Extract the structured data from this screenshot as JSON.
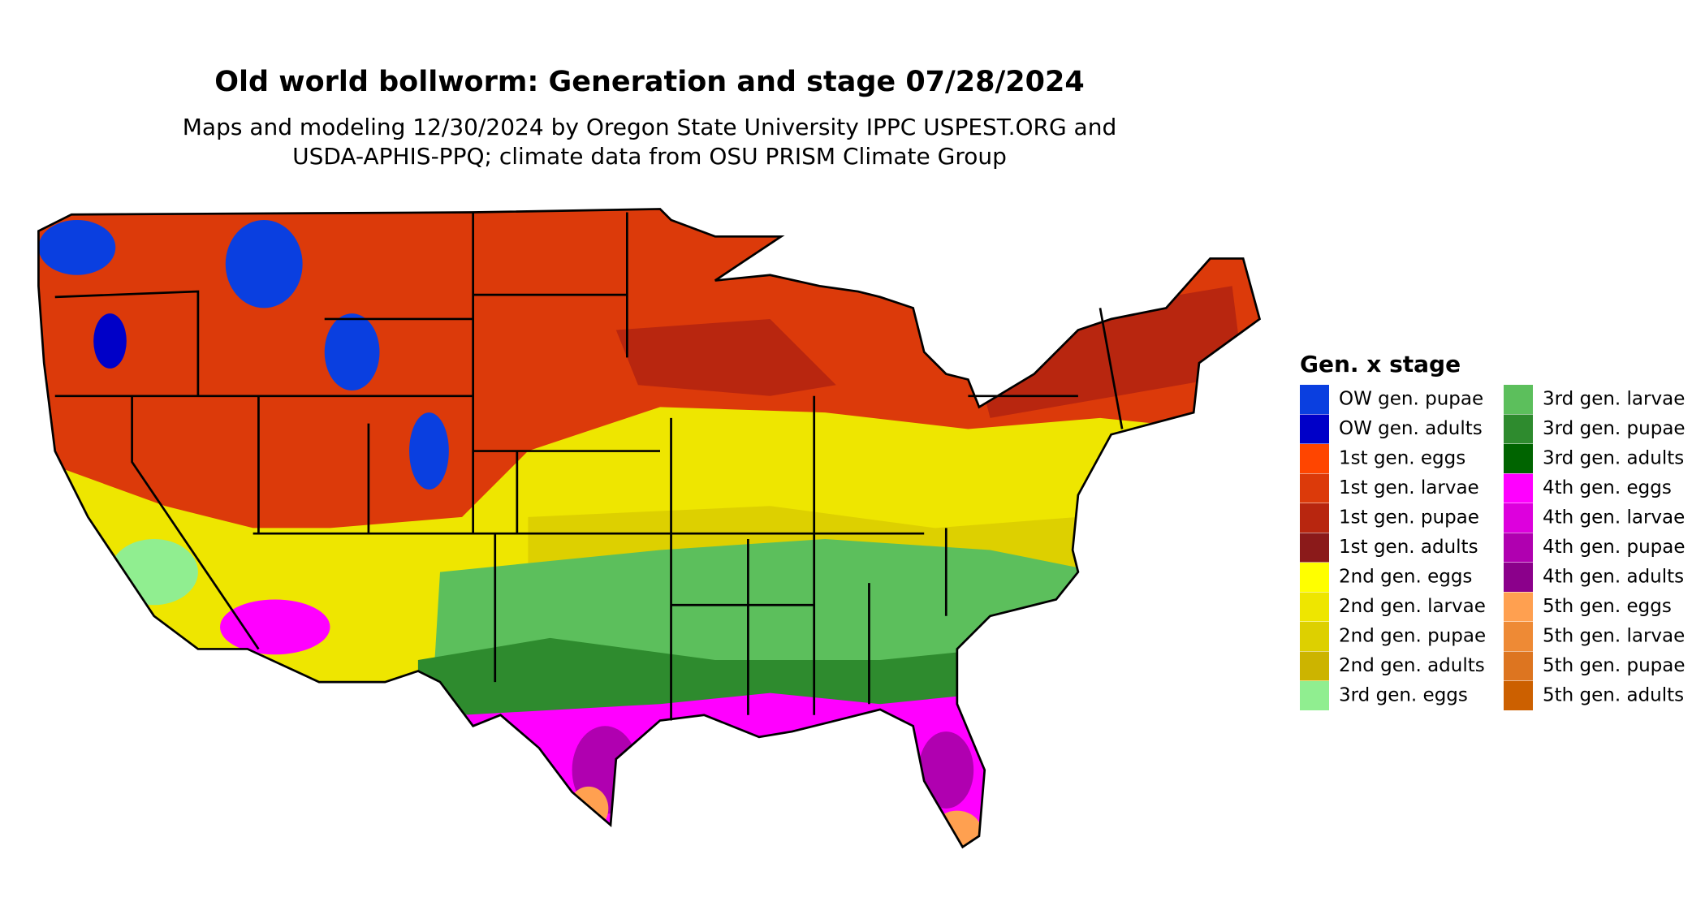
{
  "header": {
    "title": "Old world bollworm: Generation and stage 07/28/2024",
    "subtitle": [
      "Maps and modeling 12/30/2024 by Oregon State University IPPC USPEST.ORG and",
      "USDA-APHIS-PPQ; climate data from OSU PRISM Climate Group"
    ]
  },
  "legend": {
    "title": "Gen. x stage",
    "items": [
      {
        "label": "OW gen. pupae",
        "color": "#0a3fe0"
      },
      {
        "label": "OW gen. adults",
        "color": "#0000c8"
      },
      {
        "label": "1st gen. eggs",
        "color": "#ff4500"
      },
      {
        "label": "1st gen. larvae",
        "color": "#dc3a0a"
      },
      {
        "label": "1st gen. pupae",
        "color": "#b8260f"
      },
      {
        "label": "1st gen. adults",
        "color": "#8b1a1a"
      },
      {
        "label": "2nd gen. eggs",
        "color": "#ffff00"
      },
      {
        "label": "2nd gen. larvae",
        "color": "#eee600"
      },
      {
        "label": "2nd gen. pupae",
        "color": "#ddd000"
      },
      {
        "label": "2nd gen. adults",
        "color": "#ccb400"
      },
      {
        "label": "3rd gen. eggs",
        "color": "#90ee90"
      },
      {
        "label": "3rd gen. larvae",
        "color": "#5cbf5c"
      },
      {
        "label": "3rd gen. pupae",
        "color": "#2e8b2e"
      },
      {
        "label": "3rd gen. adults",
        "color": "#006400"
      },
      {
        "label": "4th gen. eggs",
        "color": "#ff00ff"
      },
      {
        "label": "4th gen. larvae",
        "color": "#dd00dd"
      },
      {
        "label": "4th gen. pupae",
        "color": "#b000b0"
      },
      {
        "label": "4th gen. adults",
        "color": "#8b008b"
      },
      {
        "label": "5th gen. eggs",
        "color": "#ffa050"
      },
      {
        "label": "5th gen. larvae",
        "color": "#ee8a35"
      },
      {
        "label": "5th gen. pupae",
        "color": "#dd7520"
      },
      {
        "label": "5th gen. adults",
        "color": "#cc6000"
      }
    ]
  }
}
